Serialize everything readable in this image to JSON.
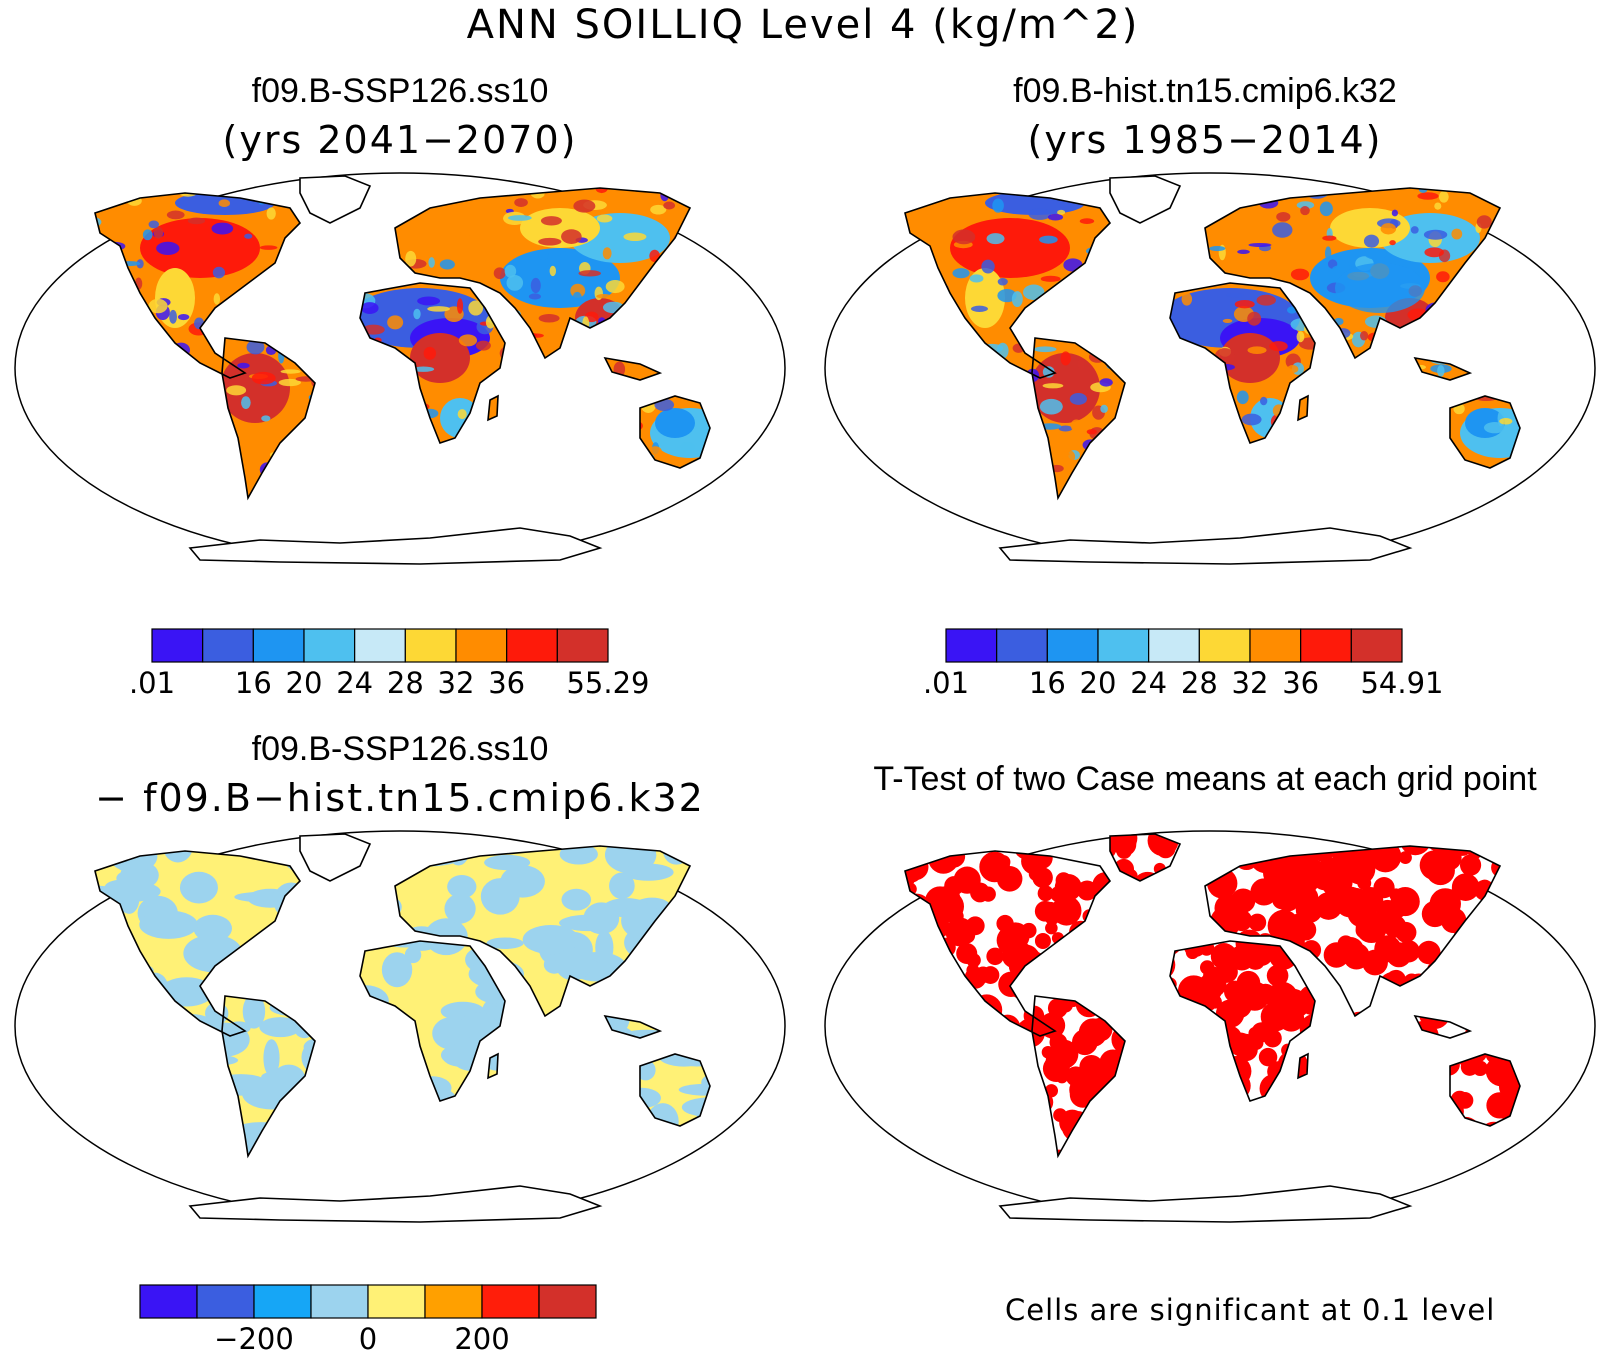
{
  "title": "ANN SOILLIQ Level 4 (kg/m^2)",
  "panels": [
    {
      "title": "f09.B-SSP126.ss10",
      "subtitle": "(yrs 2041−2070)",
      "palette": "absolute"
    },
    {
      "title": "f09.B-hist.tn15.cmip6.k32",
      "subtitle": "(yrs 1985−2014)",
      "palette": "absolute"
    },
    {
      "title": "f09.B-SSP126.ss10",
      "subtitle": "− f09.B−hist.tn15.cmip6.k32",
      "palette": "difference"
    },
    {
      "title": "T-Test of two Case means at each grid point",
      "subtitle": "",
      "palette": "ttest"
    }
  ],
  "colorbars": [
    {
      "colors": [
        "#3a14f5",
        "#3b5ee0",
        "#1e95f2",
        "#4ec0ef",
        "#c7e9f7",
        "#fdd835",
        "#ff8c00",
        "#fe1a0a",
        "#d3302a"
      ],
      "labels": [
        ".01",
        "16",
        "20",
        "24",
        "28",
        "32",
        "36",
        "55.29"
      ],
      "label_positions": [
        0,
        2,
        3,
        4,
        5,
        6,
        7,
        9
      ]
    },
    {
      "colors": [
        "#3a14f5",
        "#3b5ee0",
        "#1e95f2",
        "#4ec0ef",
        "#c7e9f7",
        "#fdd835",
        "#ff8c00",
        "#fe1a0a",
        "#d3302a"
      ],
      "labels": [
        ".01",
        "16",
        "20",
        "24",
        "28",
        "32",
        "36",
        "54.91"
      ],
      "label_positions": [
        0,
        2,
        3,
        4,
        5,
        6,
        7,
        9
      ]
    },
    {
      "colors": [
        "#3a14f5",
        "#3b5ee0",
        "#16a6f6",
        "#9cd3ee",
        "#fff176",
        "#ffa000",
        "#ff1e0a",
        "#d3302a"
      ],
      "labels": [
        "−200",
        "0",
        "200"
      ],
      "label_positions": [
        2,
        4,
        6
      ]
    }
  ],
  "significance_note": "Cells are significant at 0.1 level",
  "map_colors": {
    "absolute": [
      "#3a14f5",
      "#3b5ee0",
      "#1e95f2",
      "#4ec0ef",
      "#fdd835",
      "#ff8c00",
      "#fe1a0a",
      "#d3302a"
    ],
    "difference": [
      "#fff176",
      "#9cd3ee"
    ],
    "ttest": [
      "#ff0000"
    ]
  }
}
